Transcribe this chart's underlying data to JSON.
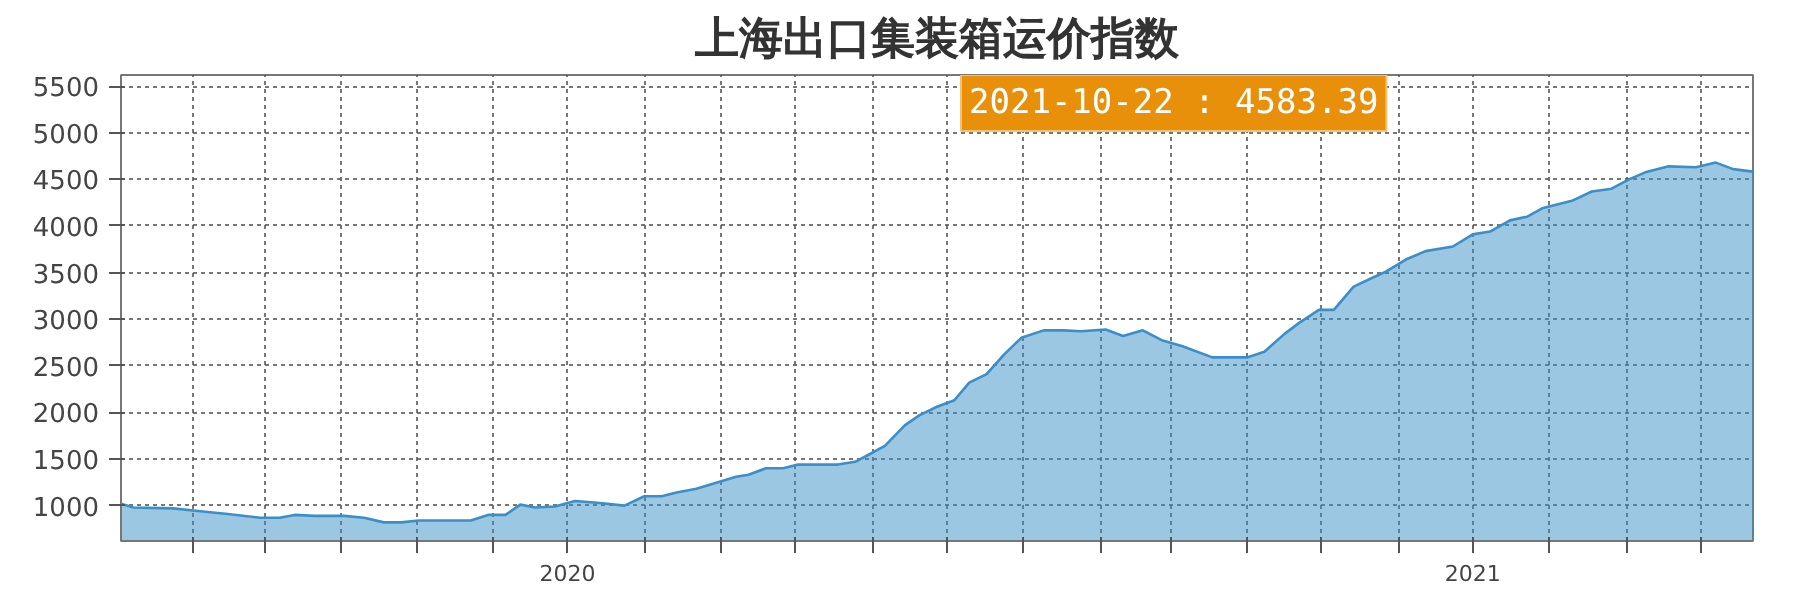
{
  "chart_data": {
    "type": "area",
    "title": "上海出口集装箱运价指数",
    "x": [
      "2020-01-03",
      "2020-01-08",
      "2020-01-24",
      "2020-02-04",
      "2020-02-15",
      "2020-02-28",
      "2020-03-07",
      "2020-03-13",
      "2020-03-21",
      "2020-04-02",
      "2020-04-10",
      "2020-04-18",
      "2020-04-25",
      "2020-05-02",
      "2020-05-11",
      "2020-05-23",
      "2020-05-30",
      "2020-06-06",
      "2020-06-12",
      "2020-06-18",
      "2020-06-26",
      "2020-07-04",
      "2020-07-13",
      "2020-07-24",
      "2020-08-01",
      "2020-08-08",
      "2020-08-14",
      "2020-08-22",
      "2020-09-01",
      "2020-09-07",
      "2020-09-12",
      "2020-09-19",
      "2020-09-26",
      "2020-10-02",
      "2020-10-18",
      "2020-10-25",
      "2020-10-30",
      "2020-11-06",
      "2020-11-14",
      "2020-11-20",
      "2020-11-27",
      "2020-12-04",
      "2020-12-10",
      "2020-12-17",
      "2020-12-24",
      "2020-12-31",
      "2021-01-09",
      "2021-01-17",
      "2021-01-24",
      "2021-02-03",
      "2021-02-10",
      "2021-02-18",
      "2021-02-26",
      "2021-03-06",
      "2021-03-18",
      "2021-04-01",
      "2021-04-08",
      "2021-04-16",
      "2021-04-22",
      "2021-04-30",
      "2021-05-06",
      "2021-05-14",
      "2021-05-22",
      "2021-05-27",
      "2021-06-04",
      "2021-06-12",
      "2021-06-23",
      "2021-07-01",
      "2021-07-08",
      "2021-07-16",
      "2021-07-23",
      "2021-07-29",
      "2021-08-10",
      "2021-08-18",
      "2021-08-26",
      "2021-09-02",
      "2021-09-09",
      "2021-09-18",
      "2021-09-29",
      "2021-10-07",
      "2021-10-14",
      "2021-10-22"
    ],
    "series": [
      {
        "color": "#3a8fc8",
        "values": [
          1020,
          980,
          970,
          940,
          910,
          870,
          870,
          900,
          890,
          890,
          870,
          820,
          820,
          840,
          840,
          840,
          900,
          900,
          1010,
          980,
          990,
          1050,
          1030,
          1000,
          1100,
          1100,
          1140,
          1180,
          1260,
          1310,
          1330,
          1400,
          1400,
          1440,
          1440,
          1470,
          1540,
          1640,
          1860,
          1970,
          2060,
          2130,
          2320,
          2410,
          2620,
          2800,
          2880,
          2880,
          2870,
          2890,
          2820,
          2880,
          2770,
          2710,
          2590,
          2590,
          2650,
          2840,
          2960,
          3100,
          3100,
          3350,
          3450,
          3510,
          3640,
          3730,
          3780,
          3910,
          3940,
          4060,
          4100,
          4190,
          4270,
          4370,
          4400,
          4500,
          4580,
          4640,
          4630,
          4680,
          4610,
          4583.39
        ]
      }
    ],
    "xlim": [
      "2020-01-03",
      "2021-10-22"
    ],
    "xticks": [
      {
        "value": "2020-02-01",
        "label": null
      },
      {
        "value": "2020-03-01",
        "label": null
      },
      {
        "value": "2020-04-01",
        "label": null
      },
      {
        "value": "2020-05-01",
        "label": null
      },
      {
        "value": "2020-06-01",
        "label": null
      },
      {
        "value": "2020-07-01",
        "label": "2020"
      },
      {
        "value": "2020-08-01",
        "label": null
      },
      {
        "value": "2020-09-01",
        "label": null
      },
      {
        "value": "2020-10-01",
        "label": null
      },
      {
        "value": "2020-11-01",
        "label": null
      },
      {
        "value": "2020-12-01",
        "label": null
      },
      {
        "value": "2021-01-01",
        "label": null
      },
      {
        "value": "2021-02-01",
        "label": null
      },
      {
        "value": "2021-03-01",
        "label": null
      },
      {
        "value": "2021-04-01",
        "label": null
      },
      {
        "value": "2021-05-01",
        "label": null
      },
      {
        "value": "2021-06-01",
        "label": null
      },
      {
        "value": "2021-07-01",
        "label": "2021"
      },
      {
        "value": "2021-08-01",
        "label": null
      },
      {
        "value": "2021-09-01",
        "label": null
      },
      {
        "value": "2021-10-01",
        "label": null
      }
    ],
    "ylim": [
      620,
      5620
    ],
    "yticks": [
      1000,
      1500,
      2000,
      2500,
      3000,
      3500,
      4000,
      4500,
      5000,
      5500
    ],
    "grid": true,
    "annotations": [
      "2021-10-22 : 4583.39"
    ]
  }
}
